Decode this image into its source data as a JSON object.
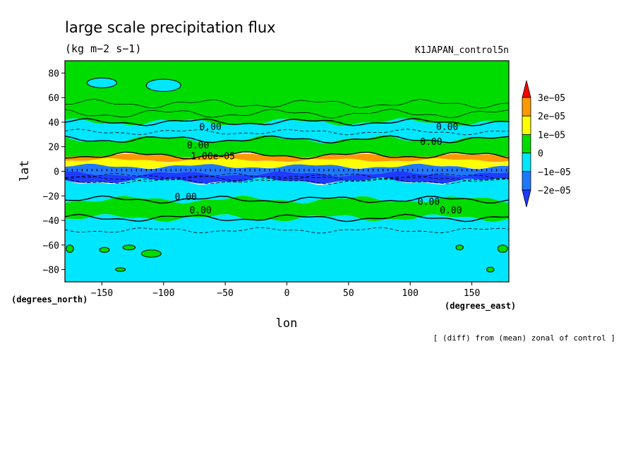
{
  "chart_data": {
    "type": "heatmap",
    "title": "large scale precipitation flux",
    "units": "(kg m−2 s−1)",
    "run_name": "K1JAPAN_control5n",
    "xlabel": "lon",
    "ylabel": "lat",
    "x_units": "(degrees_east)",
    "y_units": "(degrees_north)",
    "note": "[ (diff) from (mean) zonal of control ]",
    "xlim": [
      -180,
      180
    ],
    "ylim": [
      -90,
      90
    ],
    "x_ticks": [
      -150,
      -100,
      -50,
      0,
      50,
      100,
      150
    ],
    "x_tick_labels": [
      "−150",
      "−100",
      "−50",
      "0",
      "50",
      "100",
      "150"
    ],
    "y_ticks": [
      80,
      60,
      40,
      20,
      0,
      -20,
      -40,
      -60,
      -80
    ],
    "y_tick_labels": [
      "80",
      "60",
      "40",
      "20",
      "0",
      "−20",
      "−40",
      "−60",
      "−80"
    ],
    "colorbar": {
      "levels": [
        -2e-05,
        -1e-05,
        0,
        1e-05,
        2e-05,
        3e-05
      ],
      "labels": [
        "−2e−05",
        "−1e−05",
        "0",
        "1e−05",
        "2e−05",
        "3e−05"
      ],
      "colors": [
        "#1e78ff",
        "#00e6ff",
        "#00dc00",
        "#ffff00",
        "#ff9900",
        "#ff0000"
      ],
      "low_color": "#1e3cff",
      "high_color": "#e60000"
    },
    "zonal_bands": [
      {
        "lat_from": 90,
        "lat_to": 40,
        "value_range": "0 to 1e-05"
      },
      {
        "lat_from": 40,
        "lat_to": 26,
        "value_range": "-1e-05 to 0"
      },
      {
        "lat_from": 26,
        "lat_to": 13,
        "value_range": "0 to 1e-05"
      },
      {
        "lat_from": 13,
        "lat_to": 9,
        "value_range": "2e-05 to 3e-05"
      },
      {
        "lat_from": 9,
        "lat_to": 4,
        "value_range": "1e-05 to 2e-05"
      },
      {
        "lat_from": 4,
        "lat_to": -2,
        "value_range": "-2e-05 to -1e-05"
      },
      {
        "lat_from": -2,
        "lat_to": -8,
        "value_range": "below -2e-05"
      },
      {
        "lat_from": -8,
        "lat_to": -23,
        "value_range": "-1e-05 to 0"
      },
      {
        "lat_from": -23,
        "lat_to": -38,
        "value_range": "0 to 1e-05"
      },
      {
        "lat_from": -38,
        "lat_to": -90,
        "value_range": "-1e-05 to 0"
      }
    ],
    "contour_labels": [
      {
        "text": "0.00",
        "lon": -62,
        "lat": 36
      },
      {
        "text": "0.00",
        "lon": 130,
        "lat": 36
      },
      {
        "text": "0.00",
        "lon": -72,
        "lat": 21
      },
      {
        "text": "0.00",
        "lon": 117,
        "lat": 24
      },
      {
        "text": "1.00e−05",
        "lon": -60,
        "lat": 12
      },
      {
        "text": "0.00",
        "lon": -82,
        "lat": -21
      },
      {
        "text": "0.00",
        "lon": 115,
        "lat": -25
      },
      {
        "text": "0.00",
        "lon": -70,
        "lat": -32
      },
      {
        "text": "0.00",
        "lon": 133,
        "lat": -32
      }
    ]
  }
}
